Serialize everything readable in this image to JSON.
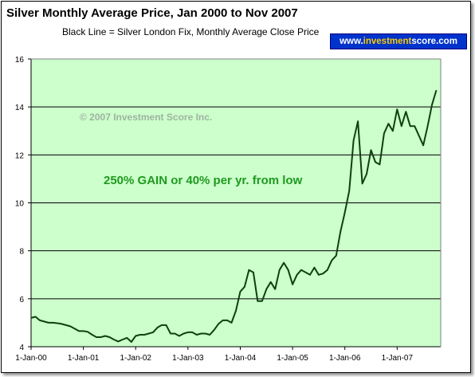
{
  "chart_data": {
    "type": "line",
    "title": "Silver Monthly Average Price, Jan 2000 to Nov 2007",
    "subtitle": "Black Line = Silver London Fix, Monthly Average Close Price",
    "xlabel": "",
    "ylabel": "",
    "ylim": [
      4,
      16
    ],
    "yticks": [
      "4",
      "6",
      "8",
      "10",
      "12",
      "14",
      "16"
    ],
    "xticks": [
      "1-Jan-00",
      "1-Jan-01",
      "1-Jan-02",
      "1-Jan-03",
      "1-Jan-04",
      "1-Jan-05",
      "1-Jan-06",
      "1-Jan-07"
    ],
    "grid": true,
    "colors": {
      "plot_background": "#ccffcc",
      "line": "#0f3f0f",
      "gridline": "#000000"
    },
    "annotations": {
      "copyright": "© 2007 Investment Score Inc.",
      "gain": "250% GAIN or 40% per yr. from low"
    },
    "brand": {
      "prefix": "www.",
      "highlight": "investment",
      "suffix": "score.com"
    },
    "series": [
      {
        "values": [
          5.2,
          5.25,
          5.1,
          5.05,
          5.0,
          5.0,
          4.98,
          4.95,
          4.9,
          4.85,
          4.75,
          4.65,
          4.65,
          4.62,
          4.5,
          4.4,
          4.4,
          4.45,
          4.4,
          4.3,
          4.22,
          4.3,
          4.37,
          4.2,
          4.45,
          4.5,
          4.5,
          4.55,
          4.6,
          4.8,
          4.9,
          4.9,
          4.55,
          4.55,
          4.45,
          4.55,
          4.6,
          4.6,
          4.5,
          4.55,
          4.55,
          4.5,
          4.7,
          4.95,
          5.1,
          5.1,
          5.0,
          5.5,
          6.3,
          6.5,
          7.2,
          7.1,
          5.9,
          5.9,
          6.4,
          6.7,
          6.4,
          7.2,
          7.5,
          7.2,
          6.6,
          7.0,
          7.2,
          7.1,
          7.0,
          7.3,
          7.0,
          7.05,
          7.2,
          7.6,
          7.8,
          8.8,
          9.6,
          10.5,
          12.6,
          13.4,
          10.8,
          11.2,
          12.2,
          11.7,
          11.6,
          12.9,
          13.3,
          13.0,
          13.9,
          13.2,
          13.8,
          13.2,
          13.2,
          12.8,
          12.4,
          13.2,
          14.1,
          14.7
        ]
      }
    ]
  }
}
